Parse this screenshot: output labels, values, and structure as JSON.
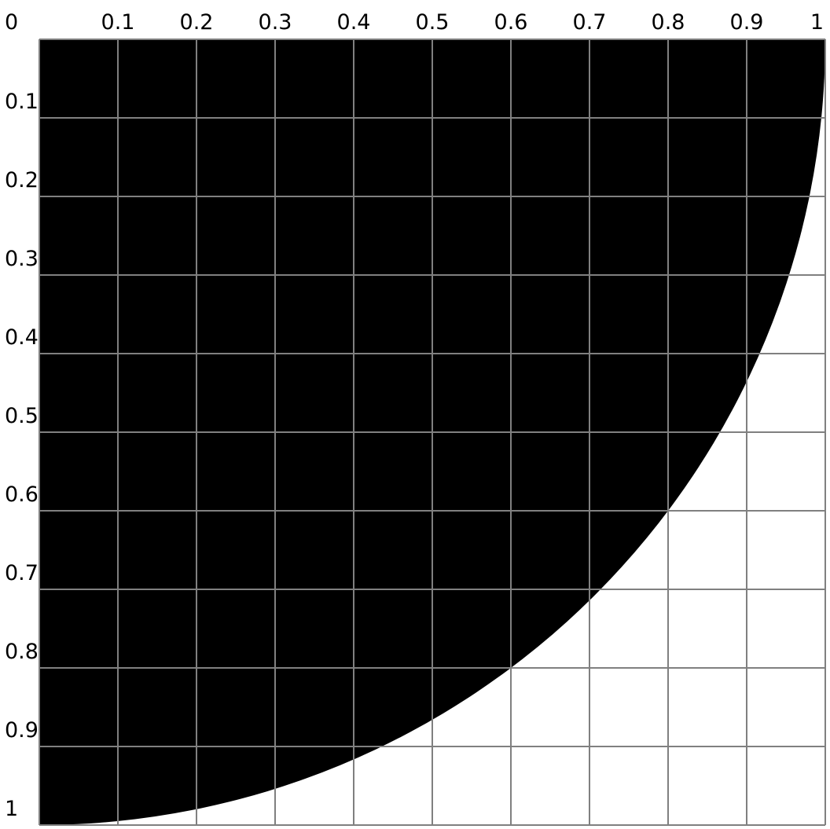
{
  "chart_data": {
    "type": "area",
    "title": "",
    "xlabel": "",
    "ylabel": "",
    "xlim": [
      0,
      1
    ],
    "ylim": [
      0,
      1
    ],
    "y_axis_direction": "down",
    "grid": true,
    "x_ticks": [
      "0",
      "0.1",
      "0.2",
      "0.3",
      "0.4",
      "0.5",
      "0.6",
      "0.7",
      "0.8",
      "0.9",
      "1"
    ],
    "y_ticks": [
      "0",
      "0.1",
      "0.2",
      "0.3",
      "0.4",
      "0.5",
      "0.6",
      "0.7",
      "0.8",
      "0.9",
      "1"
    ],
    "shape": "quarter-disc",
    "center": [
      0,
      0
    ],
    "radius": 1,
    "fill_color": "#000000",
    "grid_color": "#808080",
    "background_color": "#ffffff"
  }
}
